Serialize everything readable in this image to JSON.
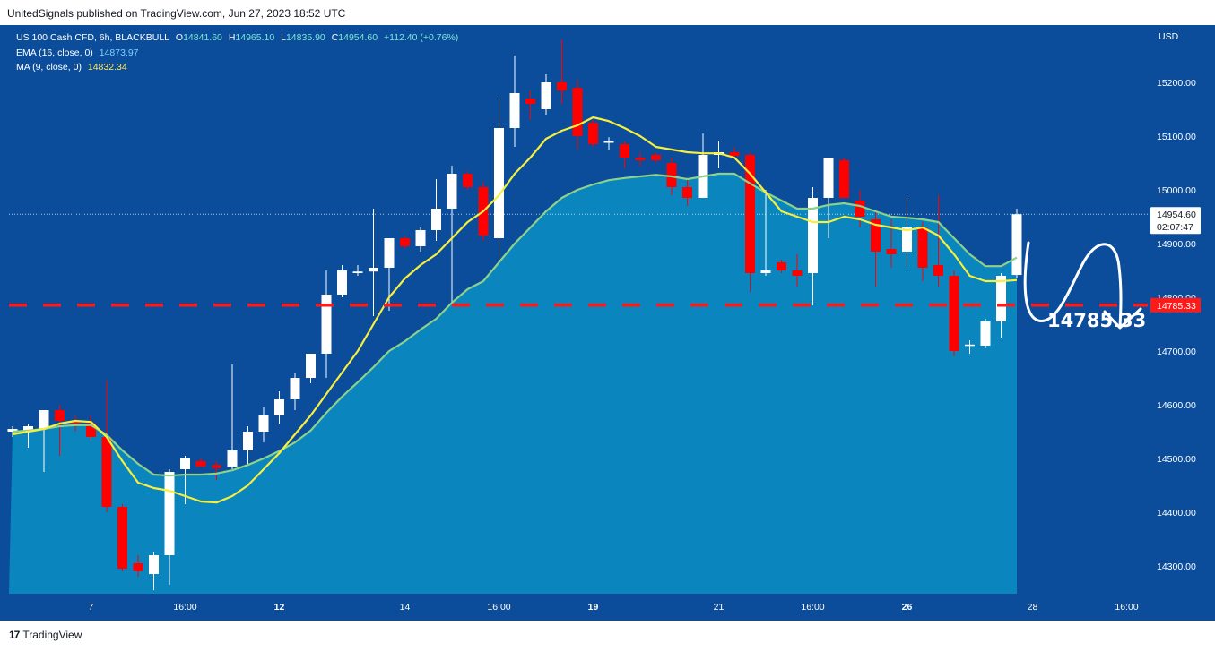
{
  "header": {
    "credit": "UnitedSignals published on TradingView.com, Jun 27, 2023 18:52 UTC"
  },
  "footer": {
    "brand": "TradingView",
    "logo_text": "17"
  },
  "legend": {
    "symbol": "US 100 Cash CFD, 6h, BLACKBULL",
    "o_label": "O",
    "o_value": "14841.60",
    "h_label": "H",
    "h_value": "14965.10",
    "l_label": "L",
    "l_value": "14835.90",
    "c_label": "C",
    "c_value": "14954.60",
    "change": "+112.40 (+0.76%)",
    "ema_label": "EMA (16, close, 0)",
    "ema_value": "14873.97",
    "ma_label": "MA (9, close, 0)",
    "ma_value": "14832.34"
  },
  "colors": {
    "background": "#0b4d9a",
    "area": "#0a85bd",
    "up_candle": "#ffffff",
    "down_candle": "#ff0000",
    "ema": "#8ed18a",
    "ma": "#f7ef3e",
    "target": "#ff1a1a"
  },
  "chart_data": {
    "type": "candlestick",
    "title": "US 100 Cash CFD, 6h, BLACKBULL",
    "currency": "USD",
    "ylim": [
      14240,
      15320
    ],
    "y_ticks": [
      "15200.00",
      "15100.00",
      "15000.00",
      "14900.00",
      "14800.00",
      "14700.00",
      "14600.00",
      "14500.00",
      "14400.00",
      "14300.00"
    ],
    "x_ticks": [
      {
        "label": "7",
        "bar": 5,
        "bold": false
      },
      {
        "label": "16:00",
        "bar": 11,
        "bold": false
      },
      {
        "label": "12",
        "bar": 17,
        "bold": true
      },
      {
        "label": "14",
        "bar": 25,
        "bold": false
      },
      {
        "label": "16:00",
        "bar": 31,
        "bold": false
      },
      {
        "label": "19",
        "bar": 37,
        "bold": true
      },
      {
        "label": "21",
        "bar": 45,
        "bold": false
      },
      {
        "label": "16:00",
        "bar": 51,
        "bold": false
      },
      {
        "label": "26",
        "bar": 57,
        "bold": true
      },
      {
        "label": "28",
        "bar": 65,
        "bold": false
      },
      {
        "label": "16:00",
        "bar": 71,
        "bold": false
      }
    ],
    "candles": [
      {
        "o": 14550,
        "h": 14560,
        "l": 14540,
        "c": 14555
      },
      {
        "o": 14550,
        "h": 14565,
        "l": 14520,
        "c": 14560
      },
      {
        "o": 14555,
        "h": 14590,
        "l": 14475,
        "c": 14590
      },
      {
        "o": 14590,
        "h": 14600,
        "l": 14505,
        "c": 14570
      },
      {
        "o": 14570,
        "h": 14580,
        "l": 14550,
        "c": 14565
      },
      {
        "o": 14565,
        "h": 14580,
        "l": 14535,
        "c": 14540
      },
      {
        "o": 14540,
        "h": 14645,
        "l": 14400,
        "c": 14410
      },
      {
        "o": 14410,
        "h": 14415,
        "l": 14290,
        "c": 14295
      },
      {
        "o": 14305,
        "h": 14320,
        "l": 14280,
        "c": 14290
      },
      {
        "o": 14285,
        "h": 14325,
        "l": 14255,
        "c": 14320
      },
      {
        "o": 14320,
        "h": 14480,
        "l": 14265,
        "c": 14475
      },
      {
        "o": 14480,
        "h": 14505,
        "l": 14415,
        "c": 14500
      },
      {
        "o": 14495,
        "h": 14500,
        "l": 14485,
        "c": 14485
      },
      {
        "o": 14488,
        "h": 14495,
        "l": 14460,
        "c": 14482
      },
      {
        "o": 14485,
        "h": 14675,
        "l": 14480,
        "c": 14515
      },
      {
        "o": 14515,
        "h": 14560,
        "l": 14490,
        "c": 14550
      },
      {
        "o": 14550,
        "h": 14595,
        "l": 14530,
        "c": 14580
      },
      {
        "o": 14580,
        "h": 14625,
        "l": 14565,
        "c": 14610
      },
      {
        "o": 14610,
        "h": 14660,
        "l": 14590,
        "c": 14650
      },
      {
        "o": 14650,
        "h": 14695,
        "l": 14640,
        "c": 14695
      },
      {
        "o": 14695,
        "h": 14850,
        "l": 14650,
        "c": 14805
      },
      {
        "o": 14805,
        "h": 14860,
        "l": 14800,
        "c": 14850
      },
      {
        "o": 14845,
        "h": 14860,
        "l": 14840,
        "c": 14848
      },
      {
        "o": 14848,
        "h": 14965,
        "l": 14765,
        "c": 14855
      },
      {
        "o": 14855,
        "h": 14910,
        "l": 14775,
        "c": 14910
      },
      {
        "o": 14910,
        "h": 14915,
        "l": 14890,
        "c": 14895
      },
      {
        "o": 14895,
        "h": 14930,
        "l": 14885,
        "c": 14925
      },
      {
        "o": 14925,
        "h": 15020,
        "l": 14905,
        "c": 14965
      },
      {
        "o": 14965,
        "h": 15045,
        "l": 14790,
        "c": 15030
      },
      {
        "o": 15030,
        "h": 15035,
        "l": 15000,
        "c": 15005
      },
      {
        "o": 15005,
        "h": 15015,
        "l": 14905,
        "c": 14915
      },
      {
        "o": 14910,
        "h": 15170,
        "l": 14870,
        "c": 15115
      },
      {
        "o": 15115,
        "h": 15250,
        "l": 15080,
        "c": 15180
      },
      {
        "o": 15170,
        "h": 15185,
        "l": 15130,
        "c": 15160
      },
      {
        "o": 15150,
        "h": 15215,
        "l": 15140,
        "c": 15200
      },
      {
        "o": 15200,
        "h": 15280,
        "l": 15160,
        "c": 15185
      },
      {
        "o": 15190,
        "h": 15205,
        "l": 15075,
        "c": 15100
      },
      {
        "o": 15125,
        "h": 15130,
        "l": 15080,
        "c": 15085
      },
      {
        "o": 15088,
        "h": 15098,
        "l": 15075,
        "c": 15090
      },
      {
        "o": 15085,
        "h": 15090,
        "l": 15040,
        "c": 15060
      },
      {
        "o": 15060,
        "h": 15070,
        "l": 15045,
        "c": 15055
      },
      {
        "o": 15065,
        "h": 15070,
        "l": 15050,
        "c": 15055
      },
      {
        "o": 15050,
        "h": 15060,
        "l": 14990,
        "c": 15005
      },
      {
        "o": 15005,
        "h": 15020,
        "l": 14970,
        "c": 14985
      },
      {
        "o": 14985,
        "h": 15105,
        "l": 14985,
        "c": 15065
      },
      {
        "o": 15065,
        "h": 15090,
        "l": 15040,
        "c": 15070
      },
      {
        "o": 15070,
        "h": 15080,
        "l": 15060,
        "c": 15063
      },
      {
        "o": 15065,
        "h": 15070,
        "l": 14810,
        "c": 14845
      },
      {
        "o": 14845,
        "h": 15000,
        "l": 14840,
        "c": 14850
      },
      {
        "o": 14865,
        "h": 14870,
        "l": 14845,
        "c": 14850
      },
      {
        "o": 14850,
        "h": 14880,
        "l": 14820,
        "c": 14840
      },
      {
        "o": 14845,
        "h": 15005,
        "l": 14785,
        "c": 14985
      },
      {
        "o": 14985,
        "h": 15060,
        "l": 14910,
        "c": 15060
      },
      {
        "o": 15055,
        "h": 15060,
        "l": 14985,
        "c": 14985
      },
      {
        "o": 14980,
        "h": 15000,
        "l": 14930,
        "c": 14950
      },
      {
        "o": 14945,
        "h": 14960,
        "l": 14820,
        "c": 14885
      },
      {
        "o": 14890,
        "h": 14945,
        "l": 14855,
        "c": 14880
      },
      {
        "o": 14885,
        "h": 14985,
        "l": 14855,
        "c": 14930
      },
      {
        "o": 14930,
        "h": 14940,
        "l": 14830,
        "c": 14855
      },
      {
        "o": 14860,
        "h": 14990,
        "l": 14820,
        "c": 14840
      },
      {
        "o": 14840,
        "h": 14850,
        "l": 14690,
        "c": 14700
      },
      {
        "o": 14710,
        "h": 14720,
        "l": 14695,
        "c": 14712
      },
      {
        "o": 14710,
        "h": 14760,
        "l": 14705,
        "c": 14755
      },
      {
        "o": 14755,
        "h": 14845,
        "l": 14725,
        "c": 14840
      },
      {
        "o": 14841.6,
        "h": 14965.1,
        "l": 14835.9,
        "c": 14954.6
      }
    ],
    "ema": [
      14550,
      14552,
      14555,
      14560,
      14562,
      14562,
      14544,
      14515,
      14490,
      14470,
      14468,
      14470,
      14470,
      14472,
      14478,
      14488,
      14500,
      14514,
      14530,
      14552,
      14585,
      14615,
      14642,
      14670,
      14700,
      14718,
      14740,
      14760,
      14790,
      14815,
      14830,
      14865,
      14900,
      14930,
      14960,
      14985,
      15000,
      15010,
      15018,
      15022,
      15025,
      15028,
      15025,
      15020,
      15025,
      15030,
      15030,
      15012,
      14995,
      14980,
      14965,
      14965,
      14972,
      14975,
      14970,
      14960,
      14950,
      14948,
      14945,
      14940,
      14910,
      14880,
      14858,
      14858,
      14874
    ],
    "ma": [
      14545,
      14550,
      14555,
      14565,
      14570,
      14568,
      14540,
      14495,
      14455,
      14445,
      14440,
      14430,
      14420,
      14418,
      14430,
      14450,
      14480,
      14510,
      14545,
      14580,
      14620,
      14660,
      14700,
      14750,
      14800,
      14835,
      14860,
      14880,
      14910,
      14940,
      14960,
      14990,
      15030,
      15060,
      15095,
      15110,
      15120,
      15135,
      15128,
      15115,
      15100,
      15080,
      15075,
      15070,
      15068,
      15068,
      15060,
      15030,
      14995,
      14960,
      14950,
      14940,
      14940,
      14950,
      14945,
      14935,
      14930,
      14925,
      14930,
      14915,
      14880,
      14840,
      14830,
      14830,
      14832
    ],
    "target": {
      "price": 14785.33,
      "label": "14785.33"
    },
    "last_price": {
      "value": "14954.60",
      "countdown": "02:07:47"
    }
  }
}
